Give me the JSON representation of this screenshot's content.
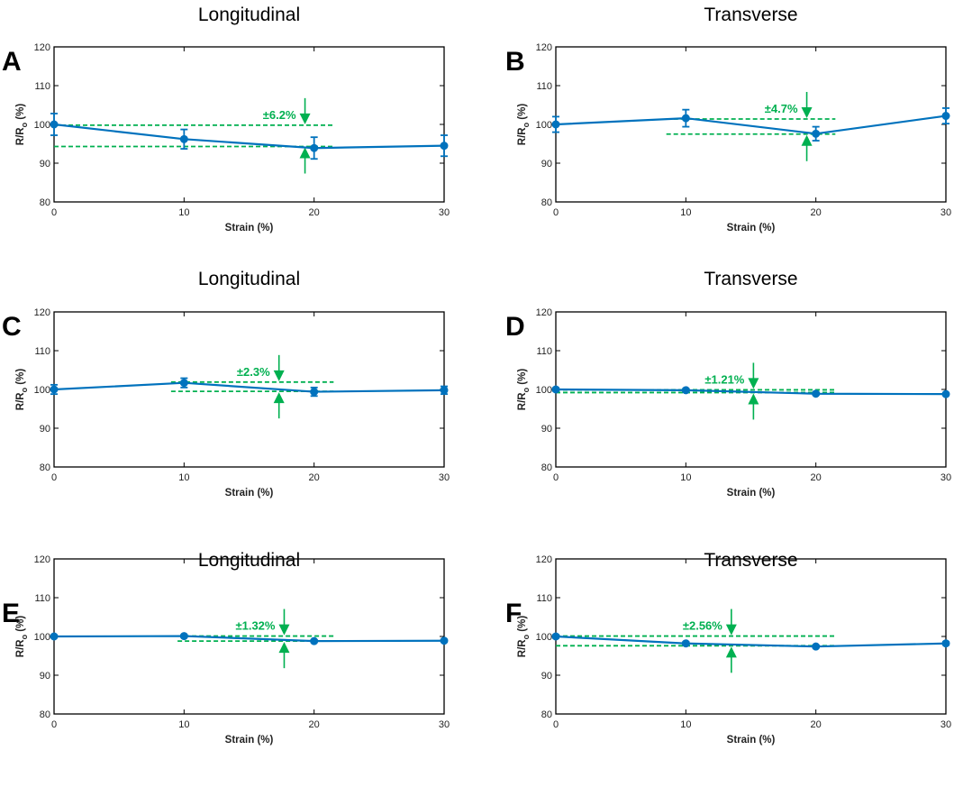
{
  "colors": {
    "series": "#0072BD",
    "annotation": "#00B050",
    "axis": "#000000"
  },
  "chart_data": [
    {
      "panel": "A",
      "type": "line",
      "title": "Longitudinal",
      "xlabel": "Strain (%)",
      "ylabel": "R/R",
      "ylabel_sub": "o",
      "ylabel_unit": " (%)",
      "xlim": [
        0,
        30
      ],
      "ylim": [
        80,
        120
      ],
      "xticks": [
        0,
        10,
        20,
        30
      ],
      "yticks": [
        80,
        90,
        100,
        110,
        120
      ],
      "x": [
        0,
        10,
        20,
        30
      ],
      "y": [
        100,
        96.2,
        93.9,
        94.5
      ],
      "yerr": [
        2.8,
        2.5,
        2.8,
        2.7
      ],
      "annotation": {
        "label": "±6.2%",
        "upper": 99.8,
        "lower": 94.3,
        "x_from": 0,
        "x_to": 21.5,
        "arrow_x": 19.3
      }
    },
    {
      "panel": "B",
      "type": "line",
      "title": "Transverse",
      "xlabel": "Strain (%)",
      "ylabel": "R/R",
      "ylabel_sub": "o",
      "ylabel_unit": " (%)",
      "xlim": [
        0,
        30
      ],
      "ylim": [
        80,
        120
      ],
      "xticks": [
        0,
        10,
        20,
        30
      ],
      "yticks": [
        80,
        90,
        100,
        110,
        120
      ],
      "x": [
        0,
        10,
        20,
        30
      ],
      "y": [
        100,
        101.6,
        97.6,
        102.2
      ],
      "yerr": [
        2.0,
        2.2,
        1.8,
        2.0
      ],
      "annotation": {
        "label": "±4.7%",
        "upper": 101.4,
        "lower": 97.5,
        "x_from": 8.5,
        "x_to": 21.5,
        "arrow_x": 19.3
      }
    },
    {
      "panel": "C",
      "type": "line",
      "title": "Longitudinal",
      "xlabel": "Strain (%)",
      "ylabel": "R/R",
      "ylabel_sub": "o",
      "ylabel_unit": " (%)",
      "xlim": [
        0,
        30
      ],
      "ylim": [
        80,
        120
      ],
      "xticks": [
        0,
        10,
        20,
        30
      ],
      "yticks": [
        80,
        90,
        100,
        110,
        120
      ],
      "x": [
        0,
        10,
        20,
        30
      ],
      "y": [
        100,
        101.7,
        99.4,
        99.8
      ],
      "yerr": [
        1.2,
        1.2,
        1.1,
        1.0
      ],
      "annotation": {
        "label": "±2.3%",
        "upper": 101.9,
        "lower": 99.5,
        "x_from": 9,
        "x_to": 21.5,
        "arrow_x": 17.3
      }
    },
    {
      "panel": "D",
      "type": "line",
      "title": "Transverse",
      "xlabel": "Strain (%)",
      "ylabel": "R/R",
      "ylabel_sub": "o",
      "ylabel_unit": " (%)",
      "xlim": [
        0,
        30
      ],
      "ylim": [
        80,
        120
      ],
      "xticks": [
        0,
        10,
        20,
        30
      ],
      "yticks": [
        80,
        90,
        100,
        110,
        120
      ],
      "x": [
        0,
        10,
        20,
        30
      ],
      "y": [
        100,
        99.8,
        98.9,
        98.8
      ],
      "yerr": [
        0.4,
        0.4,
        0.3,
        0.3
      ],
      "annotation": {
        "label": "±1.21%",
        "upper": 99.9,
        "lower": 99.2,
        "x_from": 0,
        "x_to": 21.5,
        "arrow_x": 15.2
      }
    },
    {
      "panel": "E",
      "type": "line",
      "title": "Longitudinal",
      "xlabel": "Strain (%)",
      "ylabel": "R/R",
      "ylabel_sub": "o",
      "ylabel_unit": " (%)",
      "xlim": [
        0,
        30
      ],
      "ylim": [
        80,
        120
      ],
      "xticks": [
        0,
        10,
        20,
        30
      ],
      "yticks": [
        80,
        90,
        100,
        110,
        120
      ],
      "x": [
        0,
        10,
        20,
        30
      ],
      "y": [
        100,
        100.1,
        98.8,
        98.9
      ],
      "yerr": [
        0.3,
        0.3,
        0.3,
        0.3
      ],
      "annotation": {
        "label": "±1.32%",
        "upper": 100.1,
        "lower": 98.8,
        "x_from": 9.5,
        "x_to": 21.5,
        "arrow_x": 17.7
      }
    },
    {
      "panel": "F",
      "type": "line",
      "title": "Transverse",
      "xlabel": "Strain (%)",
      "ylabel": "R/R",
      "ylabel_sub": "o",
      "ylabel_unit": " (%)",
      "xlim": [
        0,
        30
      ],
      "ylim": [
        80,
        120
      ],
      "xticks": [
        0,
        10,
        20,
        30
      ],
      "yticks": [
        80,
        90,
        100,
        110,
        120
      ],
      "x": [
        0,
        10,
        20,
        30
      ],
      "y": [
        100,
        98.2,
        97.4,
        98.2
      ],
      "yerr": [
        0.4,
        0.4,
        0.3,
        0.4
      ],
      "annotation": {
        "label": "±2.56%",
        "upper": 100.1,
        "lower": 97.6,
        "x_from": 0,
        "x_to": 21.5,
        "arrow_x": 13.5
      }
    }
  ]
}
